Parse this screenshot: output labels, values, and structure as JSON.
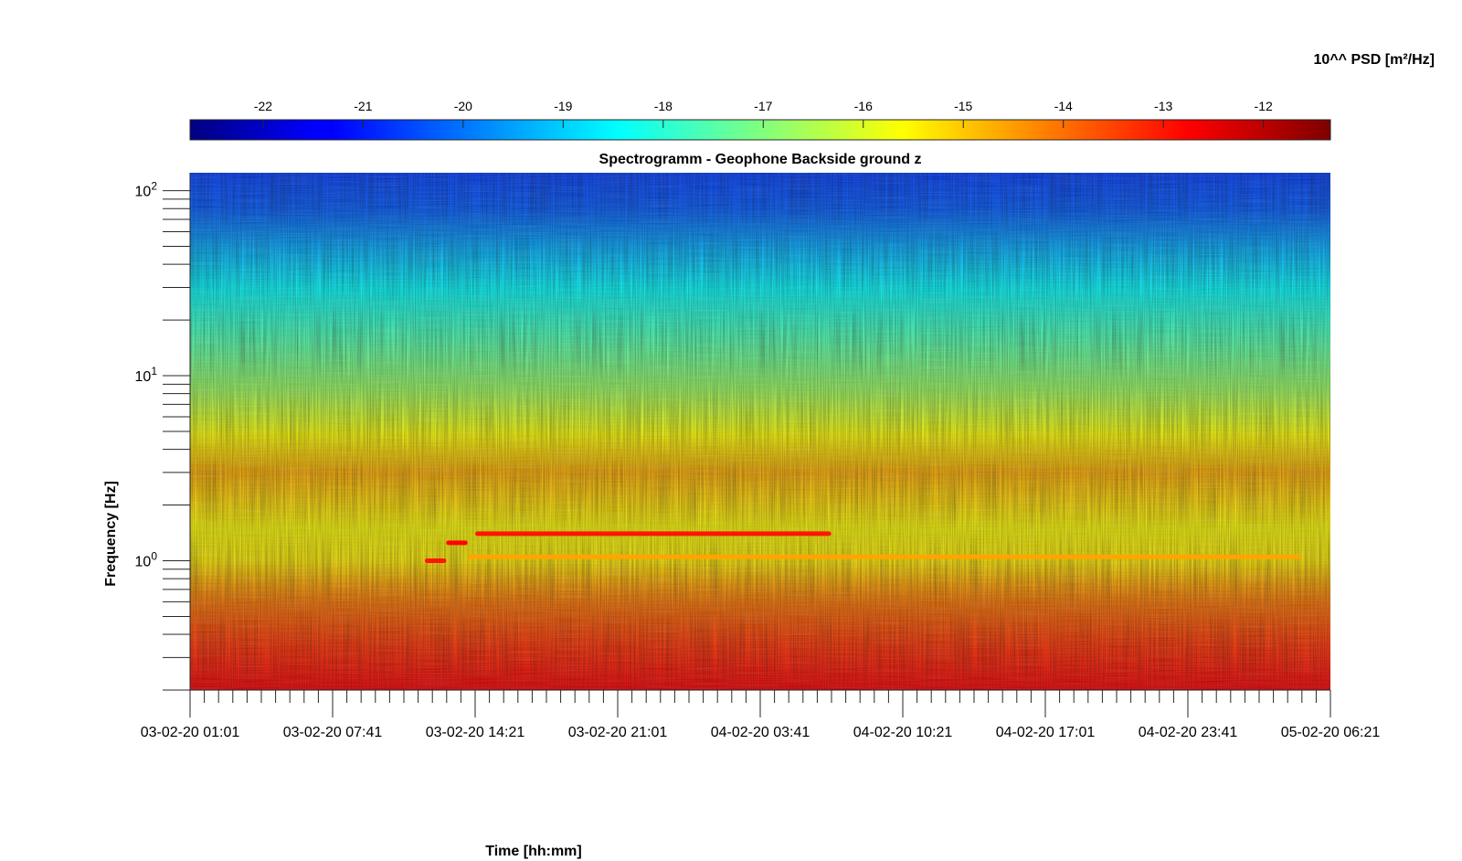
{
  "chart_data": {
    "type": "heatmap",
    "title": "Spectrogramm - Geophone Backside ground z",
    "xlabel": "Time [hh:mm]",
    "ylabel": "Frequency [Hz]",
    "x_scale": "time",
    "y_scale": "log",
    "x_ticks": [
      "03-02-20 01:01",
      "03-02-20 07:41",
      "03-02-20 14:21",
      "03-02-20 21:01",
      "04-02-20 03:41",
      "04-02-20 10:21",
      "04-02-20 17:01",
      "04-02-20 23:41",
      "05-02-20 06:21"
    ],
    "xlim": [
      "03-02-20 01:01",
      "05-02-20 06:21"
    ],
    "y_ticks": [
      {
        "base": "10",
        "exp": "0",
        "value": 1
      },
      {
        "base": "10",
        "exp": "1",
        "value": 10
      },
      {
        "base": "10",
        "exp": "2",
        "value": 100
      }
    ],
    "ylim": [
      0.2,
      125
    ],
    "colorbar": {
      "label": "10^^ PSD [m²/Hz]",
      "ticks": [
        "-22",
        "-21",
        "-20",
        "-19",
        "-18",
        "-17",
        "-16",
        "-15",
        "-14",
        "-13",
        "-12"
      ],
      "range": [
        -22.73,
        -11.33
      ],
      "colormap": "jet",
      "placement": "top"
    },
    "psd_profile": [
      {
        "freq": 0.2,
        "log_psd": -12.7
      },
      {
        "freq": 0.35,
        "log_psd": -13.3
      },
      {
        "freq": 0.6,
        "log_psd": -14.1
      },
      {
        "freq": 0.75,
        "log_psd": -14.6
      },
      {
        "freq": 1.0,
        "log_psd": -15.4
      },
      {
        "freq": 1.5,
        "log_psd": -15.6
      },
      {
        "freq": 3.0,
        "log_psd": -14.7
      },
      {
        "freq": 5.0,
        "log_psd": -15.7
      },
      {
        "freq": 8.0,
        "log_psd": -16.6
      },
      {
        "freq": 15.0,
        "log_psd": -17.5
      },
      {
        "freq": 30.0,
        "log_psd": -18.5
      },
      {
        "freq": 50.0,
        "log_psd": -19.4
      },
      {
        "freq": 80.0,
        "log_psd": -20.3
      },
      {
        "freq": 125.0,
        "log_psd": -20.6
      }
    ],
    "features": [
      {
        "freq": 1.0,
        "t_start": "03-02-20 12:00",
        "t_end": "03-02-20 13:00",
        "log_psd": -13.0
      },
      {
        "freq": 1.25,
        "t_start": "03-02-20 13:00",
        "t_end": "03-02-20 14:00",
        "log_psd": -12.8
      },
      {
        "freq": 1.4,
        "t_start": "03-02-20 14:21",
        "t_end": "04-02-20 07:00",
        "log_psd": -13.0
      },
      {
        "freq": 1.05,
        "t_start": "03-02-20 14:00",
        "t_end": "05-02-20 05:00",
        "log_psd": -14.6
      }
    ]
  }
}
